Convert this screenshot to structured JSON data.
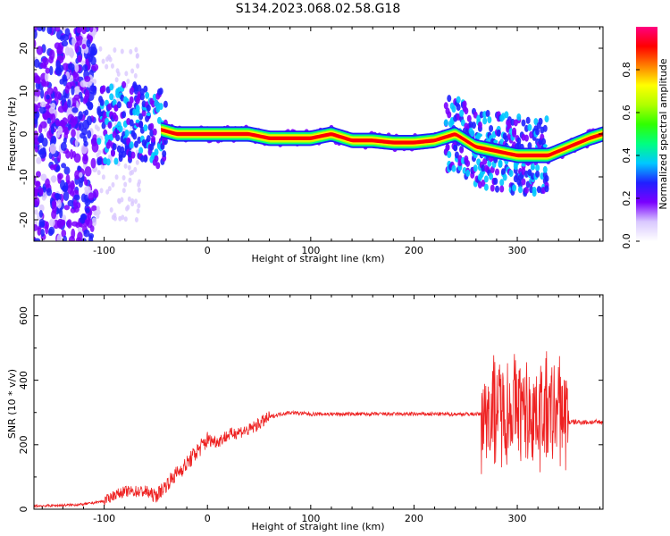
{
  "figure_title": "S134.2023.068.02.58.G18",
  "chart_data": [
    {
      "type": "heatmap",
      "title": "",
      "xlabel": "Height of straight line (km)",
      "ylabel": "Frequency (Hz)",
      "xlim": [
        -168,
        383
      ],
      "ylim": [
        -25,
        25
      ],
      "xticks": [
        -100,
        0,
        100,
        200,
        300
      ],
      "yticks": [
        -20,
        -10,
        0,
        10,
        20
      ],
      "ridge": {
        "x": [
          -100,
          -80,
          -60,
          -45,
          -30,
          0,
          20,
          40,
          60,
          80,
          100,
          120,
          140,
          160,
          180,
          200,
          220,
          240,
          260,
          280,
          300,
          320,
          330,
          350,
          370,
          383
        ],
        "y": [
          2,
          3,
          3,
          1,
          0,
          0,
          0,
          0,
          -1,
          -1,
          -1,
          0,
          -1.5,
          -1.5,
          -2,
          -2,
          -1.5,
          0,
          -3,
          -4,
          -5,
          -5,
          -5,
          -3,
          -1,
          0
        ]
      },
      "colorbar": {
        "label": "Normalized spectral amplitude",
        "range": [
          0,
          1
        ],
        "ticks": [
          "0.0",
          "0.2",
          "0.4",
          "0.6",
          "0.8"
        ],
        "colors": [
          "#ffffff",
          "#d9c8ff",
          "#7a00ff",
          "#2020ff",
          "#00c8ff",
          "#00ff80",
          "#30ff00",
          "#b0ff00",
          "#ffff00",
          "#ff8000",
          "#ff0000",
          "#ff0080"
        ]
      },
      "grid": false
    },
    {
      "type": "line",
      "title": "",
      "xlabel": "Height of straight line (km)",
      "ylabel": "SNR (10 * v/v)",
      "xlim": [
        -168,
        383
      ],
      "ylim": [
        0,
        665
      ],
      "xticks": [
        -100,
        0,
        100,
        200,
        300
      ],
      "yticks": [
        0,
        200,
        400,
        600
      ],
      "series": [
        {
          "color": "#ee2222",
          "x": [
            -168,
            -140,
            -120,
            -100,
            -90,
            -80,
            -60,
            -50,
            -40,
            -30,
            -20,
            -10,
            0,
            10,
            20,
            30,
            40,
            50,
            60,
            70,
            80,
            100,
            150,
            200,
            250,
            265,
            270,
            280,
            290,
            300,
            310,
            320,
            330,
            340,
            345,
            350,
            360,
            383
          ],
          "y": [
            10,
            12,
            15,
            25,
            45,
            55,
            55,
            40,
            75,
            110,
            140,
            180,
            215,
            210,
            230,
            240,
            245,
            265,
            285,
            295,
            300,
            295,
            295,
            295,
            295,
            295,
            300,
            320,
            300,
            320,
            300,
            300,
            300,
            300,
            300,
            270,
            270,
            270
          ],
          "envelope_low": [
            -168,
            270,
            280,
            290,
            300,
            310,
            320,
            330,
            340,
            350
          ],
          "envelope_spread": [
            0,
            120,
            180,
            200,
            240,
            260,
            270,
            250,
            250,
            250
          ]
        }
      ],
      "grid": false
    }
  ]
}
